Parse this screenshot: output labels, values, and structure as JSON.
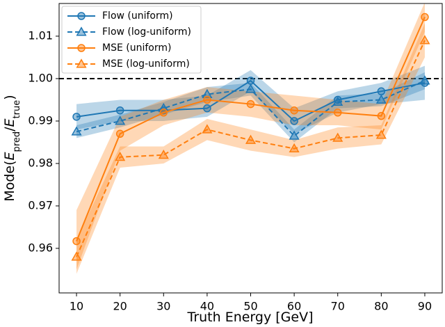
{
  "chart_data": {
    "type": "line",
    "xlabel": "Truth Energy [GeV]",
    "ylabel_parts": [
      "Mode(",
      "E",
      "pred",
      "/",
      "E",
      "true",
      ")"
    ],
    "x": [
      10,
      20,
      30,
      40,
      50,
      60,
      70,
      80,
      90
    ],
    "xlim": [
      6,
      94
    ],
    "xticks": [
      10,
      20,
      30,
      40,
      50,
      60,
      70,
      80,
      90
    ],
    "ylim": [
      0.9495,
      1.0177
    ],
    "yticks": [
      0.96,
      0.97,
      0.98,
      0.99,
      {
        "value": 1,
        "label": "1.00"
      },
      1.01
    ],
    "hline": 1,
    "legend": "upper left",
    "series": [
      {
        "name": "Flow (uniform)",
        "color": "#1f77b4",
        "linestyle": "solid",
        "marker": "circle",
        "values": [
          0.991,
          0.9925,
          0.9925,
          0.993,
          0.9995,
          0.99,
          0.995,
          0.997,
          0.999
        ],
        "lower": [
          0.988,
          0.99,
          0.99,
          0.991,
          0.997,
          0.987,
          0.992,
          0.994,
          0.995
        ],
        "upper": [
          0.994,
          0.995,
          0.995,
          0.996,
          1.002,
          0.993,
          0.997,
          0.999,
          1.003
        ]
      },
      {
        "name": "Flow (log-uniform)",
        "color": "#1f77b4",
        "linestyle": "dashed",
        "marker": "triangle",
        "values": [
          0.9875,
          0.99,
          0.993,
          0.9963,
          0.9975,
          0.9865,
          0.9945,
          0.995,
          0.9995
        ],
        "lower": [
          0.986,
          0.9885,
          0.9915,
          0.9945,
          0.996,
          0.985,
          0.993,
          0.9935,
          0.9975
        ],
        "upper": [
          0.989,
          0.9915,
          0.9945,
          0.998,
          0.999,
          0.988,
          0.996,
          0.9965,
          1.0015
        ]
      },
      {
        "name": "MSE (uniform)",
        "color": "#ff7f0e",
        "linestyle": "solid",
        "marker": "circle",
        "values": [
          0.9617,
          0.987,
          0.992,
          0.995,
          0.994,
          0.9925,
          0.992,
          0.9912,
          1.0145
        ],
        "lower": [
          0.955,
          0.983,
          0.989,
          0.992,
          0.991,
          0.989,
          0.989,
          0.988,
          1.011
        ],
        "upper": [
          0.969,
          0.991,
          0.995,
          0.998,
          0.997,
          0.996,
          0.995,
          0.994,
          1.018
        ]
      },
      {
        "name": "MSE (log-uniform)",
        "color": "#ff7f0e",
        "linestyle": "dashed",
        "marker": "triangle",
        "values": [
          0.958,
          0.9815,
          0.982,
          0.988,
          0.9855,
          0.9835,
          0.986,
          0.9867,
          1.009
        ],
        "lower": [
          0.954,
          0.979,
          0.98,
          0.9855,
          0.983,
          0.9815,
          0.9835,
          0.9845,
          1.005
        ],
        "upper": [
          0.962,
          0.984,
          0.984,
          0.9905,
          0.988,
          0.9855,
          0.9885,
          0.989,
          1.013
        ]
      }
    ]
  }
}
